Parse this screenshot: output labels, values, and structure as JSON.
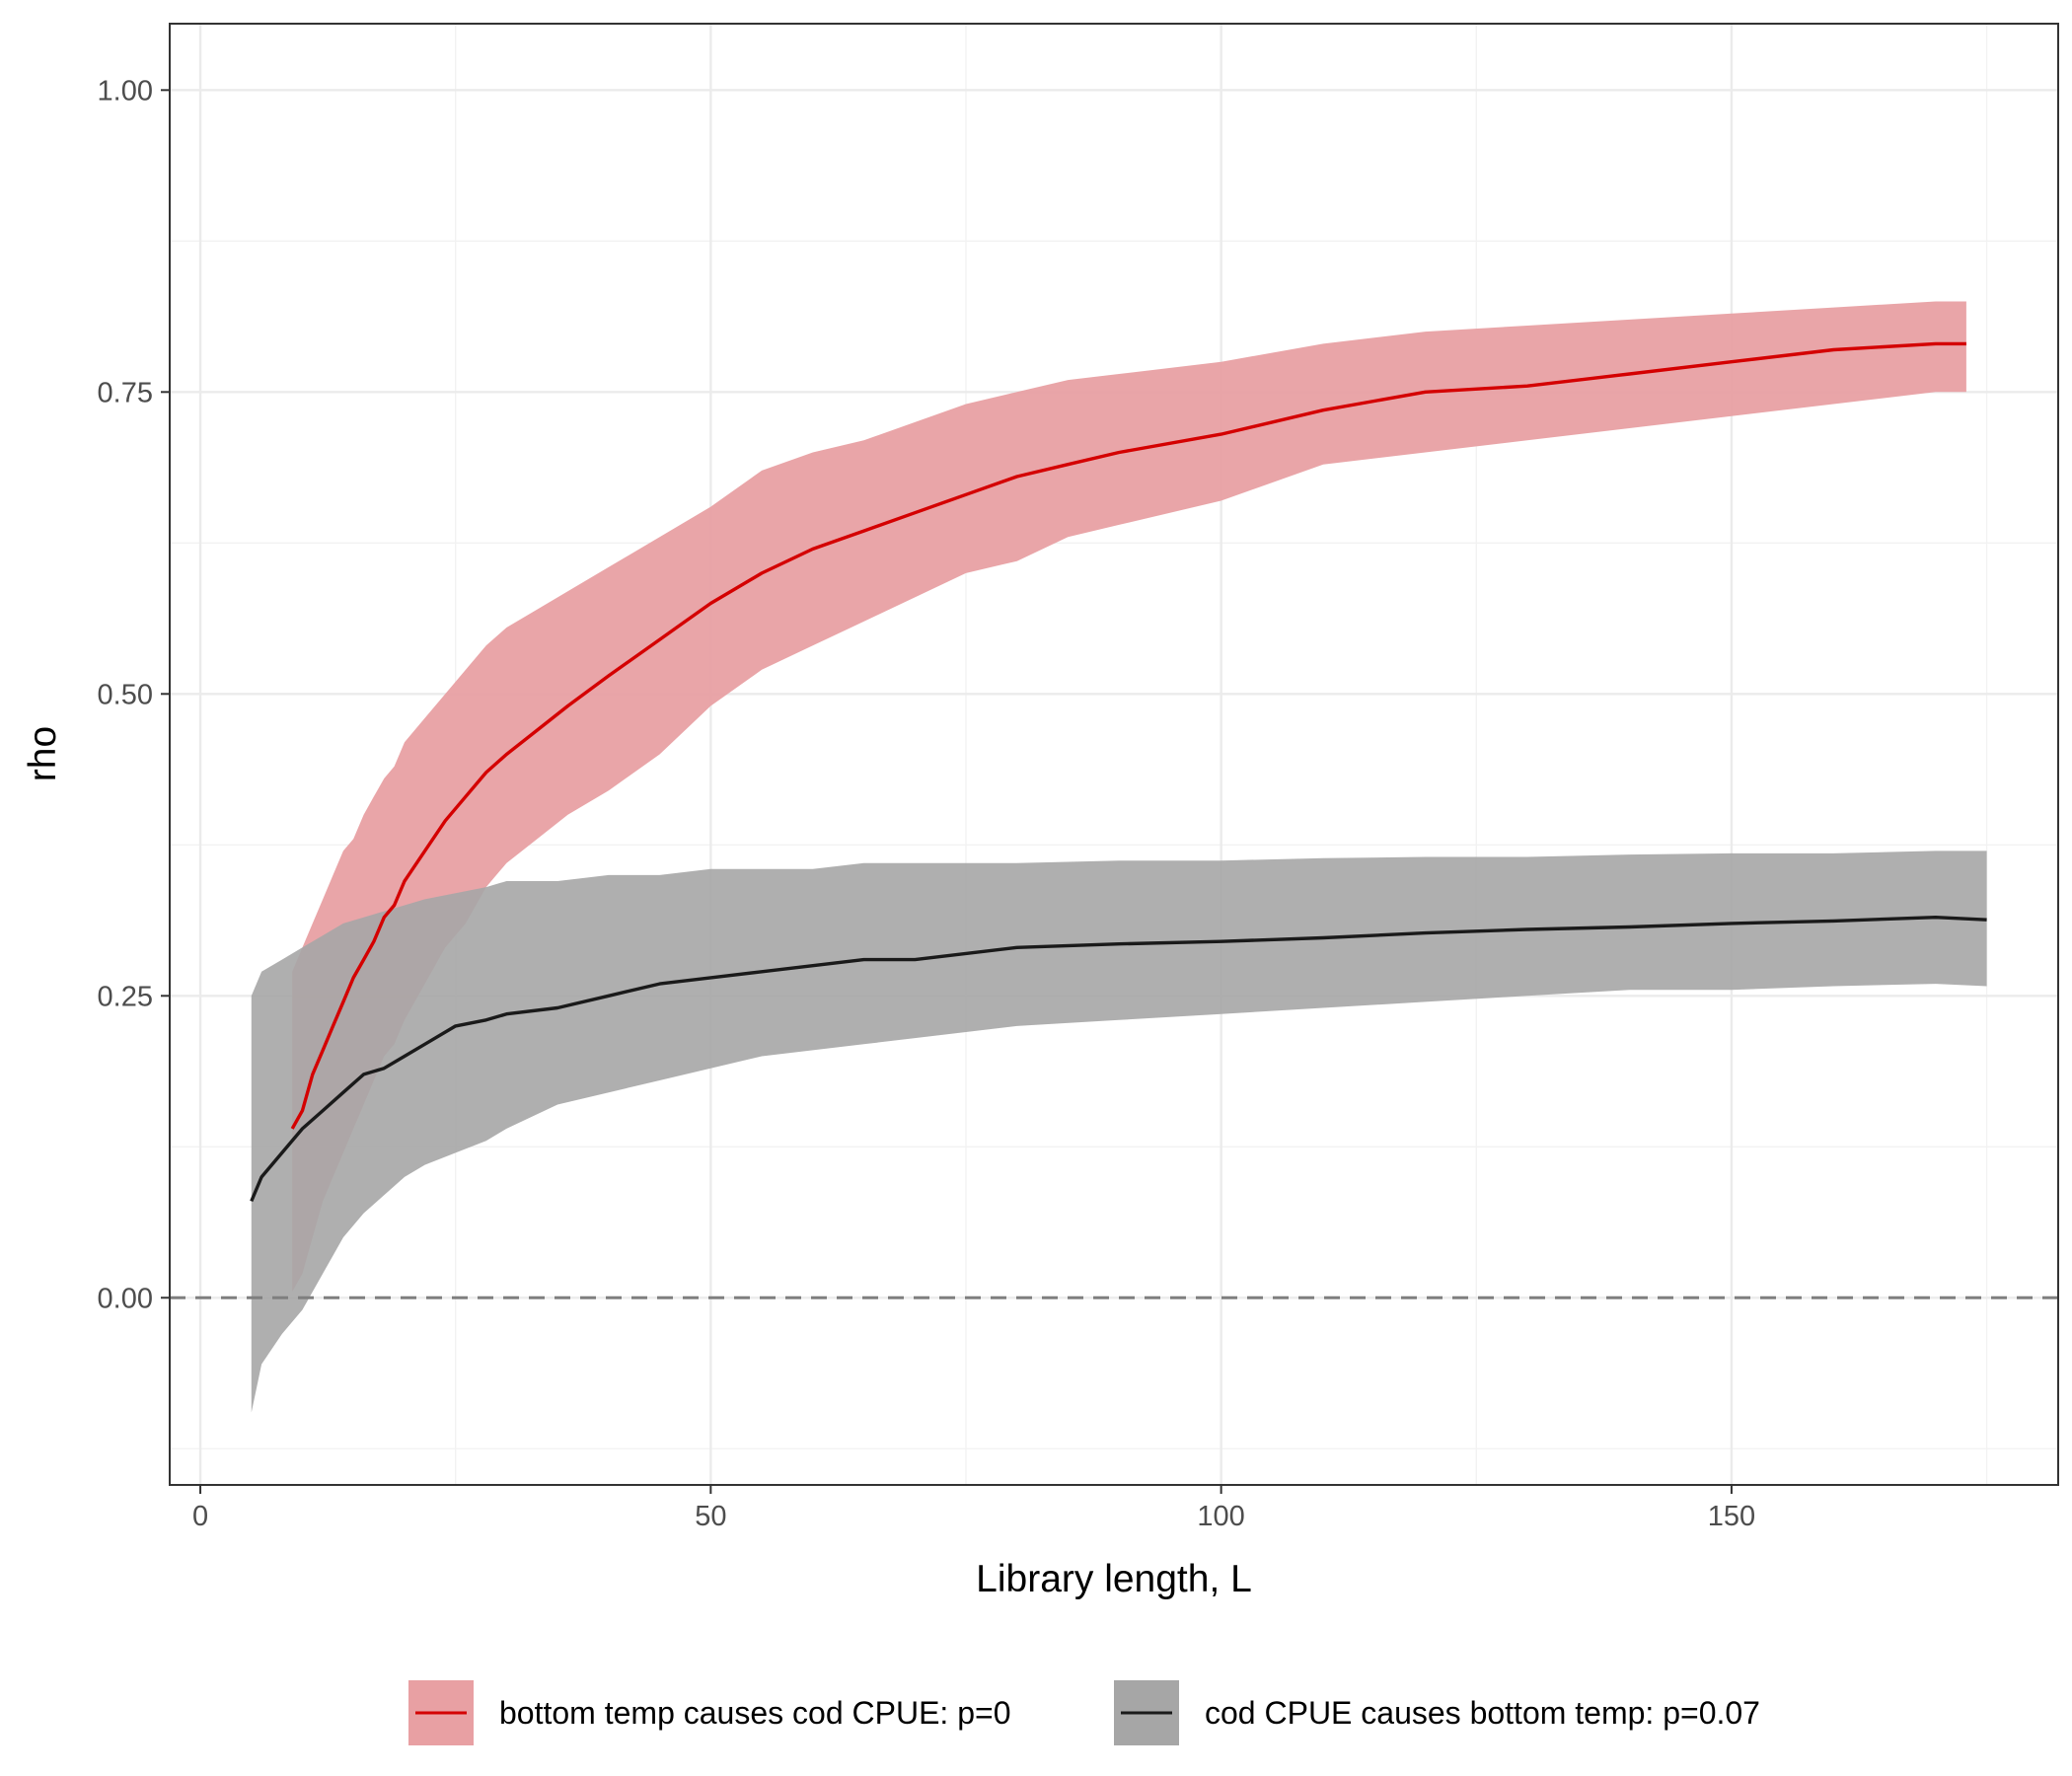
{
  "chart_data": {
    "type": "line",
    "title": "",
    "xlabel": "Library length, L",
    "ylabel": "rho",
    "xlim": [
      -3,
      182
    ],
    "ylim": [
      -0.155,
      1.055
    ],
    "x_ticks": [
      0,
      50,
      100,
      150
    ],
    "x_tick_labels": [
      "0",
      "50",
      "100",
      "150"
    ],
    "y_ticks": [
      0,
      0.25,
      0.5,
      0.75,
      1
    ],
    "y_tick_labels": [
      "0.00",
      "0.25",
      "0.50",
      "0.75",
      "1.00"
    ],
    "grid": true,
    "reference_line": {
      "y": 0,
      "style": "dashed"
    },
    "legend_position": "bottom",
    "series": [
      {
        "name": "bottom temp causes cod CPUE: p=0",
        "color": "#d40000",
        "band_color": "#e8a0a3",
        "x": [
          9,
          10,
          11,
          12,
          13,
          14,
          15,
          16,
          17,
          18,
          19,
          20,
          22,
          24,
          26,
          28,
          30,
          33,
          36,
          40,
          45,
          50,
          55,
          60,
          65,
          70,
          75,
          80,
          85,
          90,
          100,
          110,
          120,
          130,
          140,
          150,
          160,
          170,
          173
        ],
        "y": [
          0.14,
          0.155,
          0.185,
          0.205,
          0.225,
          0.245,
          0.265,
          0.28,
          0.295,
          0.315,
          0.325,
          0.345,
          0.37,
          0.395,
          0.415,
          0.435,
          0.45,
          0.47,
          0.49,
          0.515,
          0.545,
          0.575,
          0.6,
          0.62,
          0.635,
          0.65,
          0.665,
          0.68,
          0.69,
          0.7,
          0.715,
          0.735,
          0.75,
          0.755,
          0.765,
          0.775,
          0.785,
          0.79,
          0.79
        ],
        "lower": [
          0.005,
          0.02,
          0.05,
          0.08,
          0.1,
          0.12,
          0.14,
          0.16,
          0.18,
          0.2,
          0.21,
          0.23,
          0.26,
          0.29,
          0.31,
          0.34,
          0.36,
          0.38,
          0.4,
          0.42,
          0.45,
          0.49,
          0.52,
          0.54,
          0.56,
          0.58,
          0.6,
          0.61,
          0.63,
          0.64,
          0.66,
          0.69,
          0.7,
          0.71,
          0.72,
          0.73,
          0.74,
          0.75,
          0.75
        ],
        "upper": [
          0.27,
          0.29,
          0.31,
          0.33,
          0.35,
          0.37,
          0.38,
          0.4,
          0.415,
          0.43,
          0.44,
          0.46,
          0.48,
          0.5,
          0.52,
          0.54,
          0.555,
          0.57,
          0.585,
          0.605,
          0.63,
          0.655,
          0.685,
          0.7,
          0.71,
          0.725,
          0.74,
          0.75,
          0.76,
          0.765,
          0.775,
          0.79,
          0.8,
          0.805,
          0.81,
          0.815,
          0.82,
          0.825,
          0.825
        ]
      },
      {
        "name": "cod CPUE causes bottom temp: p=0.07",
        "color": "#1a1a1a",
        "band_color": "#a6a6a6",
        "x": [
          5,
          6,
          8,
          10,
          12,
          14,
          16,
          18,
          20,
          22,
          25,
          28,
          30,
          35,
          40,
          45,
          50,
          55,
          60,
          65,
          70,
          80,
          90,
          100,
          110,
          120,
          130,
          140,
          150,
          160,
          170,
          175
        ],
        "y": [
          0.08,
          0.1,
          0.12,
          0.14,
          0.155,
          0.17,
          0.185,
          0.19,
          0.2,
          0.21,
          0.225,
          0.23,
          0.235,
          0.24,
          0.25,
          0.26,
          0.265,
          0.27,
          0.275,
          0.28,
          0.28,
          0.29,
          0.293,
          0.295,
          0.298,
          0.302,
          0.305,
          0.307,
          0.31,
          0.312,
          0.315,
          0.313
        ],
        "lower": [
          -0.095,
          -0.055,
          -0.03,
          -0.01,
          0.02,
          0.05,
          0.07,
          0.085,
          0.1,
          0.11,
          0.12,
          0.13,
          0.14,
          0.16,
          0.17,
          0.18,
          0.19,
          0.2,
          0.205,
          0.21,
          0.215,
          0.225,
          0.23,
          0.235,
          0.24,
          0.245,
          0.25,
          0.255,
          0.255,
          0.258,
          0.26,
          0.258
        ],
        "upper": [
          0.25,
          0.27,
          0.28,
          0.29,
          0.3,
          0.31,
          0.315,
          0.32,
          0.325,
          0.33,
          0.335,
          0.34,
          0.345,
          0.345,
          0.35,
          0.35,
          0.355,
          0.355,
          0.355,
          0.36,
          0.36,
          0.36,
          0.362,
          0.362,
          0.364,
          0.365,
          0.365,
          0.367,
          0.368,
          0.368,
          0.37,
          0.37
        ]
      }
    ]
  }
}
